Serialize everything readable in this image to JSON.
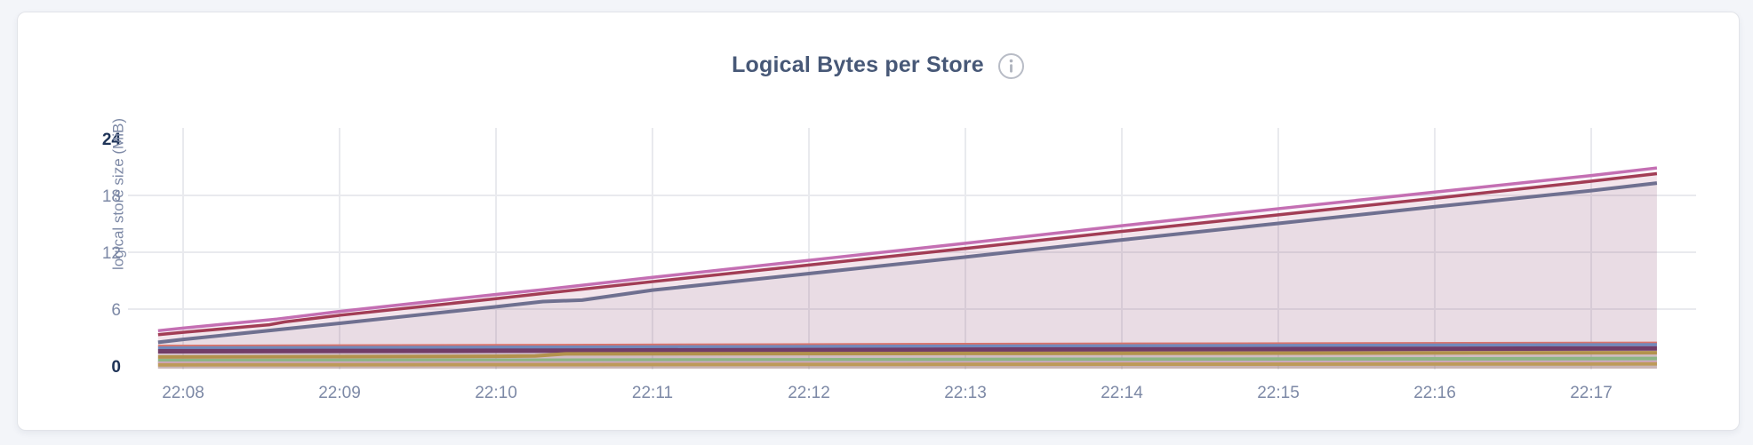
{
  "header": {
    "title": "Logical Bytes per Store",
    "info_icon": "info-circle-icon"
  },
  "colors": {
    "title_text": "#475877",
    "axis_text": "#7d89a6",
    "axis_text_emphasis": "#1e3357",
    "gridline": "#e9eaee",
    "card_background": "#ffffff",
    "page_background": "#f3f5f9",
    "card_border": "#e2e4e9"
  },
  "chart_data": {
    "type": "area",
    "title": "Logical Bytes per Store",
    "xlabel": "",
    "ylabel": "logical store size (MiB)",
    "unit": "MiB",
    "ylim": [
      0,
      24
    ],
    "grid": true,
    "legend": "none",
    "fill_opacity": 0.08,
    "y_gridlines": [
      6,
      12,
      18
    ],
    "y_ticks": [
      {
        "value": 24,
        "bold": true
      },
      {
        "value": 18,
        "bold": false
      },
      {
        "value": 12,
        "bold": false
      },
      {
        "value": 6,
        "bold": false
      },
      {
        "value": 0,
        "bold": true
      }
    ],
    "x_ticks": [
      {
        "minute": 8,
        "label": "22:08"
      },
      {
        "minute": 9,
        "label": "22:09"
      },
      {
        "minute": 10,
        "label": "22:10"
      },
      {
        "minute": 11,
        "label": "22:11"
      },
      {
        "minute": 12,
        "label": "22:12"
      },
      {
        "minute": 13,
        "label": "22:13"
      },
      {
        "minute": 14,
        "label": "22:14"
      },
      {
        "minute": 15,
        "label": "22:15"
      },
      {
        "minute": 16,
        "label": "22:16"
      },
      {
        "minute": 17,
        "label": "22:17"
      }
    ],
    "x_range_minutes": [
      7.84,
      17.42
    ],
    "series": [
      {
        "id": "store-pink",
        "color": "#c46fb3",
        "width": 3.5,
        "points": [
          [
            7.84,
            3.72
          ],
          [
            8,
            4.0
          ],
          [
            8.6,
            4.95
          ],
          [
            9,
            5.75
          ],
          [
            10,
            7.55
          ],
          [
            10.3,
            8.05
          ],
          [
            11,
            9.35
          ],
          [
            12,
            11.15
          ],
          [
            13,
            12.95
          ],
          [
            14,
            14.8
          ],
          [
            15,
            16.6
          ],
          [
            16,
            18.35
          ],
          [
            17,
            20.1
          ],
          [
            17.42,
            20.9
          ]
        ]
      },
      {
        "id": "store-crimson",
        "color": "#a23d55",
        "width": 3.5,
        "points": [
          [
            7.84,
            3.3
          ],
          [
            8,
            3.55
          ],
          [
            8.55,
            4.35
          ],
          [
            8.65,
            4.65
          ],
          [
            9,
            5.35
          ],
          [
            10,
            7.1
          ],
          [
            10.3,
            7.65
          ],
          [
            11,
            8.9
          ],
          [
            12,
            10.65
          ],
          [
            13,
            12.4
          ],
          [
            14,
            14.2
          ],
          [
            15,
            15.95
          ],
          [
            16,
            17.7
          ],
          [
            17,
            19.5
          ],
          [
            17.42,
            20.3
          ]
        ]
      },
      {
        "id": "store-slate",
        "color": "#6f7090",
        "width": 4,
        "points": [
          [
            7.84,
            2.5
          ],
          [
            8,
            2.8
          ],
          [
            9,
            4.5
          ],
          [
            10,
            6.25
          ],
          [
            10.3,
            6.8
          ],
          [
            10.55,
            6.95
          ],
          [
            11,
            8.0
          ],
          [
            12,
            9.75
          ],
          [
            13,
            11.5
          ],
          [
            14,
            13.3
          ],
          [
            15,
            15.05
          ],
          [
            16,
            16.8
          ],
          [
            17,
            18.5
          ],
          [
            17.42,
            19.3
          ]
        ]
      },
      {
        "id": "store-salmon",
        "color": "#d9736a",
        "width": 2.5,
        "points": [
          [
            7.84,
            2.12
          ],
          [
            10,
            2.2
          ],
          [
            13,
            2.32
          ],
          [
            17.42,
            2.45
          ]
        ]
      },
      {
        "id": "store-blue",
        "color": "#7189bb",
        "width": 3.5,
        "points": [
          [
            7.84,
            1.9
          ],
          [
            10,
            1.98
          ],
          [
            13,
            2.1
          ],
          [
            17.42,
            2.25
          ]
        ]
      },
      {
        "id": "store-magenta",
        "color": "#713c67",
        "width": 5,
        "points": [
          [
            7.84,
            1.55
          ],
          [
            10,
            1.6
          ],
          [
            13,
            1.72
          ],
          [
            17.42,
            1.85
          ]
        ]
      },
      {
        "id": "store-gold",
        "color": "#b3924d",
        "width": 4,
        "points": [
          [
            7.84,
            0.95
          ],
          [
            10,
            1.02
          ],
          [
            10.25,
            1.05
          ],
          [
            10.45,
            1.28
          ],
          [
            13,
            1.32
          ],
          [
            17.42,
            1.4
          ]
        ]
      },
      {
        "id": "store-green",
        "color": "#8cb584",
        "width": 4,
        "points": [
          [
            7.84,
            0.56
          ],
          [
            10,
            0.6
          ],
          [
            13,
            0.68
          ],
          [
            17.42,
            0.78
          ]
        ]
      },
      {
        "id": "store-lightpink",
        "color": "#cfa8c6",
        "width": 3,
        "points": [
          [
            7.84,
            0.33
          ],
          [
            13,
            0.38
          ],
          [
            17.42,
            0.42
          ]
        ]
      },
      {
        "id": "store-tan",
        "color": "#bd9a59",
        "width": 4,
        "points": [
          [
            7.84,
            0.12
          ],
          [
            13,
            0.17
          ],
          [
            17.42,
            0.22
          ]
        ]
      }
    ]
  }
}
